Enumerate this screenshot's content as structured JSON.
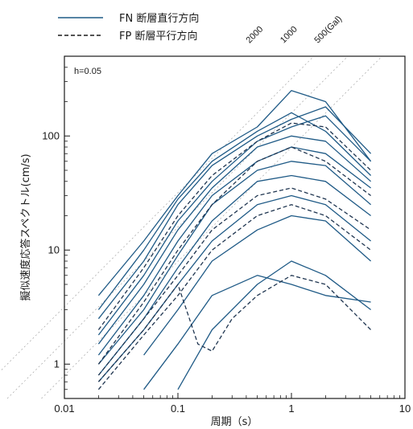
{
  "chart_data": {
    "type": "line",
    "title": "",
    "xlabel": "周期（s）",
    "ylabel": "擬似速度応答スペクトル(cm/s)",
    "xscale": "log",
    "yscale": "log",
    "xlim": [
      0.01,
      10
    ],
    "ylim": [
      0.5,
      500
    ],
    "grid": false,
    "legend_position": "top-left, above plot",
    "damping_label": "h=0.05",
    "x_ticks": [
      0.01,
      0.1,
      1,
      10
    ],
    "x_tick_labels": [
      "0.01",
      "0.1",
      "1",
      "10"
    ],
    "y_ticks": [
      1,
      10,
      100
    ],
    "y_tick_labels": [
      "1",
      "10",
      "100"
    ],
    "legend": [
      {
        "name": "FN 断層直行方向",
        "style": "solid"
      },
      {
        "name": "FP 断層平行方向",
        "style": "dashed"
      }
    ],
    "acceleration_lines": [
      {
        "label": "2000",
        "gal": 2000
      },
      {
        "label": "1000",
        "gal": 1000
      },
      {
        "label": "500(Gal)",
        "gal": 500
      }
    ],
    "line_color": "#1f5a86",
    "series": [
      {
        "component": "FN",
        "points": [
          [
            0.02,
            4
          ],
          [
            0.05,
            12
          ],
          [
            0.1,
            30
          ],
          [
            0.2,
            70
          ],
          [
            0.5,
            120
          ],
          [
            1,
            250
          ],
          [
            2,
            200
          ],
          [
            5,
            60
          ]
        ]
      },
      {
        "component": "FN",
        "points": [
          [
            0.02,
            2.5
          ],
          [
            0.05,
            8
          ],
          [
            0.1,
            25
          ],
          [
            0.2,
            55
          ],
          [
            0.5,
            100
          ],
          [
            1,
            140
          ],
          [
            2,
            180
          ],
          [
            5,
            70
          ]
        ]
      },
      {
        "component": "FN",
        "points": [
          [
            0.02,
            1.8
          ],
          [
            0.05,
            6
          ],
          [
            0.1,
            18
          ],
          [
            0.2,
            40
          ],
          [
            0.5,
            90
          ],
          [
            1,
            120
          ],
          [
            2,
            150
          ],
          [
            5,
            60
          ]
        ]
      },
      {
        "component": "FN",
        "points": [
          [
            0.02,
            1.5
          ],
          [
            0.05,
            5
          ],
          [
            0.1,
            15
          ],
          [
            0.2,
            35
          ],
          [
            0.5,
            80
          ],
          [
            1,
            100
          ],
          [
            2,
            90
          ],
          [
            5,
            40
          ]
        ]
      },
      {
        "component": "FN",
        "points": [
          [
            0.02,
            1.2
          ],
          [
            0.05,
            4
          ],
          [
            0.1,
            12
          ],
          [
            0.2,
            30
          ],
          [
            0.5,
            60
          ],
          [
            1,
            80
          ],
          [
            2,
            70
          ],
          [
            5,
            35
          ]
        ]
      },
      {
        "component": "FN",
        "points": [
          [
            0.02,
            1
          ],
          [
            0.05,
            3
          ],
          [
            0.1,
            9
          ],
          [
            0.2,
            25
          ],
          [
            0.5,
            50
          ],
          [
            1,
            60
          ],
          [
            2,
            55
          ],
          [
            5,
            25
          ]
        ]
      },
      {
        "component": "FN",
        "points": [
          [
            0.02,
            0.8
          ],
          [
            0.05,
            2.5
          ],
          [
            0.1,
            7
          ],
          [
            0.2,
            18
          ],
          [
            0.5,
            40
          ],
          [
            1,
            45
          ],
          [
            2,
            40
          ],
          [
            5,
            20
          ]
        ]
      },
      {
        "component": "FN",
        "points": [
          [
            0.02,
            0.7
          ],
          [
            0.05,
            2
          ],
          [
            0.1,
            5
          ],
          [
            0.2,
            12
          ],
          [
            0.5,
            25
          ],
          [
            1,
            30
          ],
          [
            2,
            25
          ],
          [
            5,
            12
          ]
        ]
      },
      {
        "component": "FN",
        "points": [
          [
            0.05,
            1.2
          ],
          [
            0.1,
            3
          ],
          [
            0.2,
            8
          ],
          [
            0.5,
            15
          ],
          [
            1,
            20
          ],
          [
            2,
            18
          ],
          [
            5,
            8
          ]
        ]
      },
      {
        "component": "FN",
        "points": [
          [
            0.1,
            0.6
          ],
          [
            0.2,
            2
          ],
          [
            0.5,
            5
          ],
          [
            1,
            8
          ],
          [
            2,
            6
          ],
          [
            5,
            3
          ]
        ]
      },
      {
        "component": "FN",
        "points": [
          [
            0.05,
            0.6
          ],
          [
            0.1,
            1.5
          ],
          [
            0.2,
            4
          ],
          [
            0.5,
            6
          ],
          [
            1,
            5
          ],
          [
            2,
            4
          ],
          [
            5,
            3.5
          ]
        ]
      },
      {
        "component": "FN",
        "points": [
          [
            0.02,
            3
          ],
          [
            0.05,
            10
          ],
          [
            0.1,
            28
          ],
          [
            0.2,
            60
          ],
          [
            0.5,
            110
          ],
          [
            1,
            160
          ],
          [
            2,
            110
          ],
          [
            5,
            45
          ]
        ]
      },
      {
        "component": "FP",
        "points": [
          [
            0.02,
            2
          ],
          [
            0.05,
            7
          ],
          [
            0.1,
            20
          ],
          [
            0.2,
            45
          ],
          [
            0.5,
            90
          ],
          [
            1,
            130
          ],
          [
            2,
            120
          ],
          [
            5,
            50
          ]
        ]
      },
      {
        "component": "FP",
        "points": [
          [
            0.02,
            1
          ],
          [
            0.05,
            3.5
          ],
          [
            0.1,
            10
          ],
          [
            0.2,
            25
          ],
          [
            0.5,
            60
          ],
          [
            1,
            80
          ],
          [
            2,
            60
          ],
          [
            5,
            30
          ]
        ]
      },
      {
        "component": "FP",
        "points": [
          [
            0.02,
            0.8
          ],
          [
            0.05,
            2.5
          ],
          [
            0.1,
            6
          ],
          [
            0.2,
            15
          ],
          [
            0.5,
            30
          ],
          [
            1,
            35
          ],
          [
            2,
            28
          ],
          [
            5,
            15
          ]
        ]
      },
      {
        "component": "FP",
        "points": [
          [
            0.02,
            0.7
          ],
          [
            0.05,
            2
          ],
          [
            0.1,
            5
          ],
          [
            0.15,
            1.5
          ],
          [
            0.2,
            1.3
          ],
          [
            0.3,
            2.5
          ],
          [
            0.5,
            4
          ],
          [
            1,
            6
          ],
          [
            2,
            5
          ],
          [
            5,
            2
          ]
        ]
      },
      {
        "component": "FP",
        "points": [
          [
            0.02,
            0.6
          ],
          [
            0.05,
            1.8
          ],
          [
            0.1,
            4
          ],
          [
            0.2,
            10
          ],
          [
            0.5,
            20
          ],
          [
            1,
            25
          ],
          [
            2,
            20
          ],
          [
            5,
            10
          ]
        ]
      }
    ]
  }
}
